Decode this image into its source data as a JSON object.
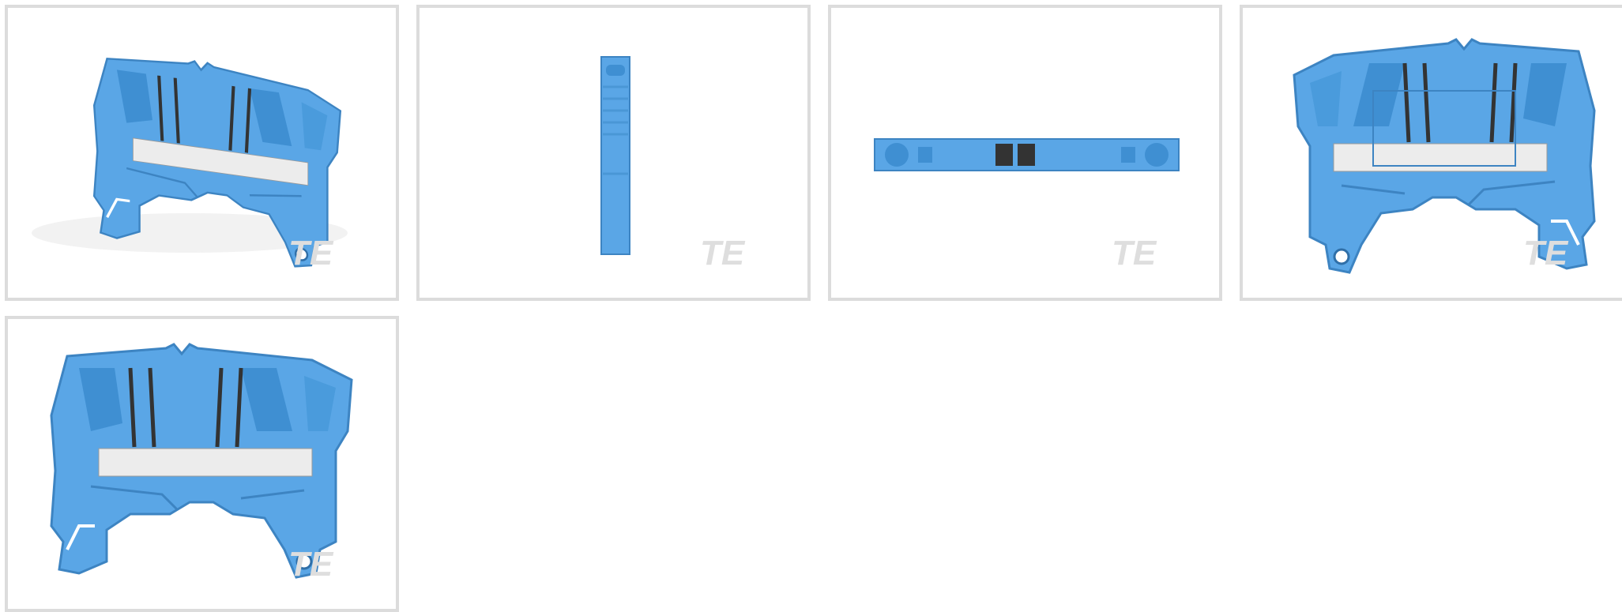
{
  "gallery": {
    "watermark": "TE"
  }
}
